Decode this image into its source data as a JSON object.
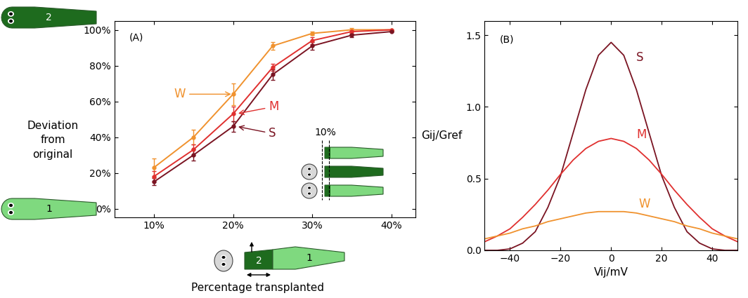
{
  "chart_data": [
    {
      "type": "line",
      "panel_label": "(A)",
      "xlabel": "Percentage transplanted",
      "ylabel": "Deviation\nfrom\noriginal",
      "x": [
        10,
        15,
        20,
        25,
        30,
        35,
        40
      ],
      "xlim": [
        5,
        43
      ],
      "xticks": [
        {
          "value": 10,
          "label": "10%"
        },
        {
          "value": 20,
          "label": "20%"
        },
        {
          "value": 30,
          "label": "30%"
        },
        {
          "value": 40,
          "label": "40%"
        }
      ],
      "ylim": [
        -5,
        105
      ],
      "yticks": [
        {
          "value": 0,
          "label": "0%"
        },
        {
          "value": 20,
          "label": "20%"
        },
        {
          "value": 40,
          "label": "40%"
        },
        {
          "value": 60,
          "label": "60%"
        },
        {
          "value": 80,
          "label": "80%"
        },
        {
          "value": 100,
          "label": "100%"
        }
      ],
      "marker": "o",
      "series": [
        {
          "name": "W",
          "color": "#f0922e",
          "values": [
            23,
            40,
            64,
            91,
            98,
            100,
            100
          ],
          "errors": [
            5,
            4,
            6,
            2,
            1,
            1,
            0
          ]
        },
        {
          "name": "M",
          "color": "#e0302f",
          "values": [
            18,
            33,
            53,
            79,
            94,
            99,
            100
          ],
          "errors": [
            3,
            3,
            4,
            2,
            2,
            1,
            0
          ]
        },
        {
          "name": "S",
          "color": "#7a1422",
          "values": [
            15,
            30,
            46,
            75,
            91,
            97,
            99
          ],
          "errors": [
            2,
            3,
            3,
            3,
            2,
            1,
            0
          ]
        }
      ],
      "inset_label": "10%",
      "worm_labels": [
        "1",
        "2"
      ]
    },
    {
      "type": "line",
      "panel_label": "(B)",
      "xlabel": "Vij/mV",
      "ylabel": "Gij/Gref",
      "x": [
        -50,
        -45,
        -40,
        -35,
        -30,
        -25,
        -20,
        -15,
        -10,
        -5,
        0,
        5,
        10,
        15,
        20,
        25,
        30,
        35,
        40,
        45,
        50
      ],
      "xlim": [
        -50,
        50
      ],
      "xticks": [
        {
          "value": -40,
          "label": "−40"
        },
        {
          "value": -20,
          "label": "−20"
        },
        0,
        20,
        40
      ],
      "ylim": [
        0,
        1.6
      ],
      "yticks": [
        {
          "value": 0,
          "label": "0.0"
        },
        {
          "value": 0.5,
          "label": "0.5"
        },
        {
          "value": 1,
          "label": "1.0"
        },
        {
          "value": 1.5,
          "label": "1.5"
        }
      ],
      "series": [
        {
          "name": "S",
          "color": "#7a1422",
          "values": [
            0,
            0,
            0.01,
            0.05,
            0.13,
            0.3,
            0.52,
            0.82,
            1.12,
            1.36,
            1.45,
            1.36,
            1.12,
            0.82,
            0.52,
            0.3,
            0.13,
            0.05,
            0.01,
            0,
            0
          ]
        },
        {
          "name": "M",
          "color": "#e0302f",
          "values": [
            0.06,
            0.1,
            0.15,
            0.23,
            0.32,
            0.42,
            0.53,
            0.63,
            0.71,
            0.76,
            0.78,
            0.76,
            0.71,
            0.63,
            0.53,
            0.42,
            0.32,
            0.23,
            0.15,
            0.1,
            0.06
          ]
        },
        {
          "name": "W",
          "color": "#f0922e",
          "values": [
            0.08,
            0.1,
            0.12,
            0.15,
            0.17,
            0.2,
            0.22,
            0.24,
            0.26,
            0.27,
            0.27,
            0.27,
            0.26,
            0.24,
            0.22,
            0.2,
            0.17,
            0.15,
            0.12,
            0.1,
            0.08
          ]
        }
      ]
    }
  ]
}
